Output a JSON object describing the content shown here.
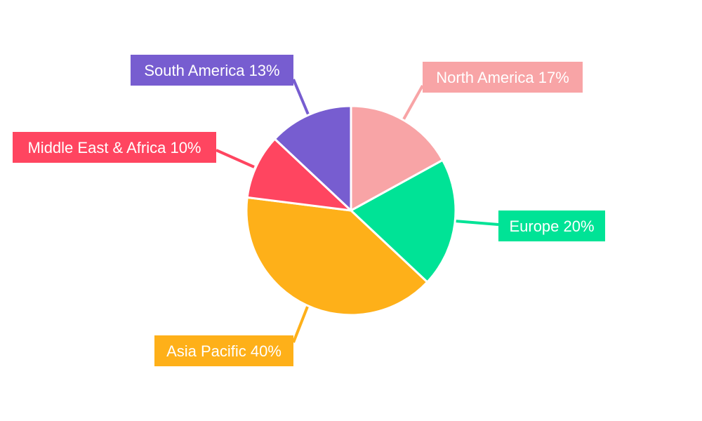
{
  "chart_data": {
    "type": "pie",
    "title": "",
    "start_angle": "top, clockwise",
    "categories": [
      "North America",
      "Europe",
      "Asia Pacific",
      "Middle East & Africa",
      "South America"
    ],
    "values": [
      17,
      20,
      40,
      10,
      13
    ],
    "colors": [
      "#f8a4a6",
      "#00e396",
      "#feb019",
      "#ff4560",
      "#775dd0"
    ],
    "labels": [
      "North America 17%",
      "Europe 20%",
      "Asia Pacific 40%",
      "Middle East & Africa 10%",
      "South America 13%"
    ],
    "legend": "none"
  }
}
